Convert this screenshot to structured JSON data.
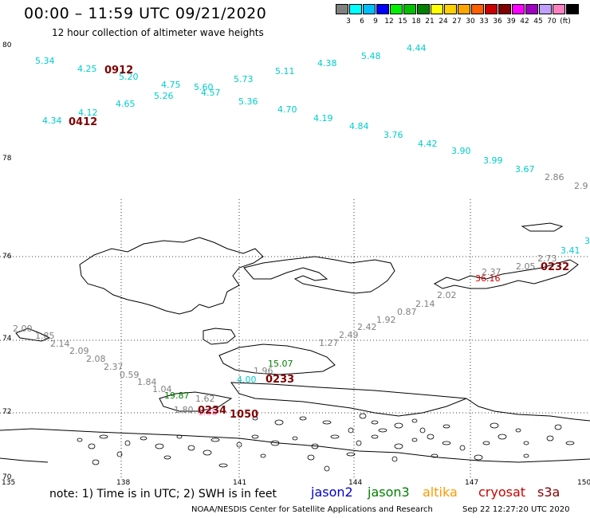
{
  "header": {
    "title": "00:00 – 11:59 UTC 09/21/2020",
    "subtitle": "12 hour collection of altimeter wave heights"
  },
  "legend": {
    "colors": [
      "#808080",
      "#00ffff",
      "#00bfff",
      "#0000ff",
      "#00ee00",
      "#00c000",
      "#008000",
      "#ffff00",
      "#ffd000",
      "#ffa500",
      "#ff6000",
      "#cc0000",
      "#800000",
      "#ff00ff",
      "#a000c0",
      "#c0a0ff",
      "#ff80c0",
      "#000000"
    ],
    "labels": [
      "3",
      "6",
      "9",
      "12",
      "15",
      "18",
      "21",
      "24",
      "27",
      "30",
      "33",
      "36",
      "39",
      "42",
      "45",
      "70",
      "(ft)"
    ]
  },
  "axes": {
    "lat_labels": [
      "80",
      "78",
      "76",
      "74",
      "72",
      "70"
    ],
    "lon_labels": [
      "135",
      "138",
      "141",
      "144",
      "147",
      "150"
    ]
  },
  "wave_labels": [
    {
      "t": "5.34",
      "c": "#00cccc"
    },
    {
      "t": "4.25",
      "c": "#00cccc"
    },
    {
      "t": "5.20",
      "c": "#00cccc"
    },
    {
      "t": "4.75",
      "c": "#00cccc"
    },
    {
      "t": "5.60",
      "c": "#00cccc"
    },
    {
      "t": "5.73",
      "c": "#00cccc"
    },
    {
      "t": "5.11",
      "c": "#00cccc"
    },
    {
      "t": "4.38",
      "c": "#00cccc"
    },
    {
      "t": "5.48",
      "c": "#00cccc"
    },
    {
      "t": "4.44",
      "c": "#00cccc"
    },
    {
      "t": "4.65",
      "c": "#00cccc"
    },
    {
      "t": "5.26",
      "c": "#00cccc"
    },
    {
      "t": "4.57",
      "c": "#00cccc"
    },
    {
      "t": "5.36",
      "c": "#00cccc"
    },
    {
      "t": "4.70",
      "c": "#00cccc"
    },
    {
      "t": "4.19",
      "c": "#00cccc"
    },
    {
      "t": "4.84",
      "c": "#00cccc"
    },
    {
      "t": "3.76",
      "c": "#00cccc"
    },
    {
      "t": "4.42",
      "c": "#00cccc"
    },
    {
      "t": "3.90",
      "c": "#00cccc"
    },
    {
      "t": "3.99",
      "c": "#00cccc"
    },
    {
      "t": "3.67",
      "c": "#00cccc"
    },
    {
      "t": "4.12",
      "c": "#00cccc"
    },
    {
      "t": "4.34",
      "c": "#00cccc"
    },
    {
      "t": "3.41",
      "c": "#00cccc"
    },
    {
      "t": "3",
      "c": "#00cccc"
    },
    {
      "t": "4.00",
      "c": "#00cccc"
    },
    {
      "t": "2.86",
      "c": "#808080"
    },
    {
      "t": "2.9",
      "c": "#808080"
    },
    {
      "t": "2.73",
      "c": "#808080"
    },
    {
      "t": "2.05",
      "c": "#808080"
    },
    {
      "t": "2.37",
      "c": "#808080"
    },
    {
      "t": "2.02",
      "c": "#808080"
    },
    {
      "t": "2.14",
      "c": "#808080"
    },
    {
      "t": "0.87",
      "c": "#808080"
    },
    {
      "t": "1.92",
      "c": "#808080"
    },
    {
      "t": "2.42",
      "c": "#808080"
    },
    {
      "t": "2.49",
      "c": "#808080"
    },
    {
      "t": "1.27",
      "c": "#808080"
    },
    {
      "t": "2.00",
      "c": "#808080"
    },
    {
      "t": "1.85",
      "c": "#808080"
    },
    {
      "t": "2.14",
      "c": "#808080"
    },
    {
      "t": "2.09",
      "c": "#808080"
    },
    {
      "t": "2.08",
      "c": "#808080"
    },
    {
      "t": "2.37",
      "c": "#808080"
    },
    {
      "t": "0.59",
      "c": "#808080"
    },
    {
      "t": "1.84",
      "c": "#808080"
    },
    {
      "t": "1.04",
      "c": "#808080"
    },
    {
      "t": "1.62",
      "c": "#808080"
    },
    {
      "t": "1.96",
      "c": "#808080"
    },
    {
      "t": "1.80",
      "c": "#808080"
    },
    {
      "t": "15.07",
      "c": "#008000"
    },
    {
      "t": "19.87",
      "c": "#008000"
    },
    {
      "t": "36.16",
      "c": "#cc0000"
    },
    {
      "t": "1.88",
      "c": "#ff80c0"
    }
  ],
  "time_labels": [
    "0912",
    "0412",
    "0232",
    "0233",
    "0234",
    "1050"
  ],
  "note": "note:  1) Time is in UTC;  2) SWH is in feet",
  "satellites": [
    {
      "name": "jason2",
      "color": "#0000cc"
    },
    {
      "name": "jason3",
      "color": "#008000"
    },
    {
      "name": "altika",
      "color": "#ff9900"
    },
    {
      "name": "cryosat",
      "color": "#cc0000"
    },
    {
      "name": "s3a",
      "color": "#800000"
    }
  ],
  "footer": "NOAA/NESDIS Center for Satellite Applications and Research",
  "footer_time": "Sep 22 12:27:20 UTC 2020"
}
